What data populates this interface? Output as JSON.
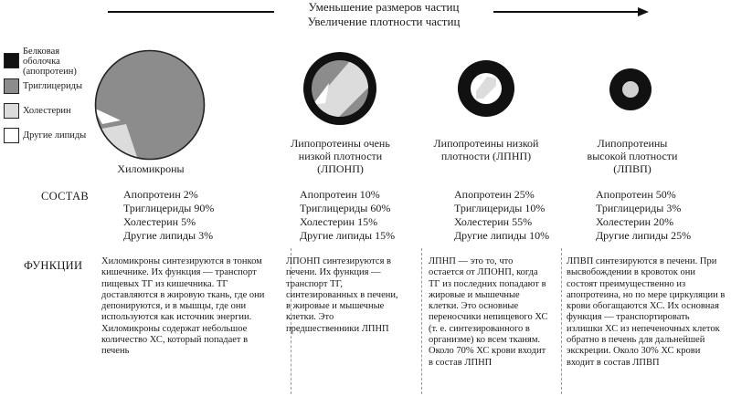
{
  "header": {
    "line1": "Уменьшение размеров частиц",
    "line2": "Увеличение плотности частиц"
  },
  "legend": [
    {
      "color": "#111111",
      "label": "Белковая оболочка (апопротеин)"
    },
    {
      "color": "#8c8c8c",
      "label": "Триглицериды"
    },
    {
      "color": "#dcdcdc",
      "label": "Холестерин"
    },
    {
      "color": "#ffffff",
      "label": "Другие липиды"
    }
  ],
  "row_labels": {
    "composition": "СОСТАВ",
    "functions": "ФУНКЦИИ"
  },
  "particles": [
    {
      "name": "Хиломикроны",
      "composition": [
        "Апопротеин 2%",
        "Триглицериды 90%",
        "Холестерин 5%",
        "Другие липиды 3%"
      ],
      "function": "Хиломикроны синтезируются в тонком кишечнике. Их функция — транспорт пищевых ТГ из кишечника. ТГ доставляются в жировую ткань, где они депонируются, и в мышцы, где они используются как источник энергии. Хиломикроны содержат небольшое количество ХС, который попадает в печень"
    },
    {
      "name": "Липопротеины очень низкой плотности (ЛПОНП)",
      "composition": [
        "Апопротеин 10%",
        "Триглицериды 60%",
        "Холестерин 15%",
        "Другие липиды 15%"
      ],
      "function": "ЛПОНП синтезируются в печени. Их функция — транспорт ТГ, синтезированных в печени, в жировые и мышечные клетки. Это предшественники ЛПНП"
    },
    {
      "name": "Липопротеины низкой плотности (ЛПНП)",
      "composition": [
        "Апопротеин 25%",
        "Триглицериды 10%",
        "Холестерин 55%",
        "Другие липиды 10%"
      ],
      "function": "ЛПНП — это то, что остается от ЛПОНП, когда ТГ из последних попадают в жировые и мышечные клетки. Это основные переносчики непищевого ХС (т. е. синтезированного в организме) ко всем тканям. Около 70% ХС крови входит в состав ЛПНП"
    },
    {
      "name": "Липопротеины высокой плотности (ЛПВП)",
      "composition": [
        "Апопротеин 50%",
        "Триглицериды 3%",
        "Холестерин 20%",
        "Другие липиды 25%"
      ],
      "function": "ЛПВП синтезируются в печени. При высвобождении в кровоток они состоят преимущественно из апопротеина, но по мере циркуляции в крови обогащаются ХС. Их основная функция — транспортировать излишки ХС из непеченочных клеток обратно в печень для дальнейшей экскреции. Около 30% ХС крови входит в состав ЛПВП"
    }
  ]
}
